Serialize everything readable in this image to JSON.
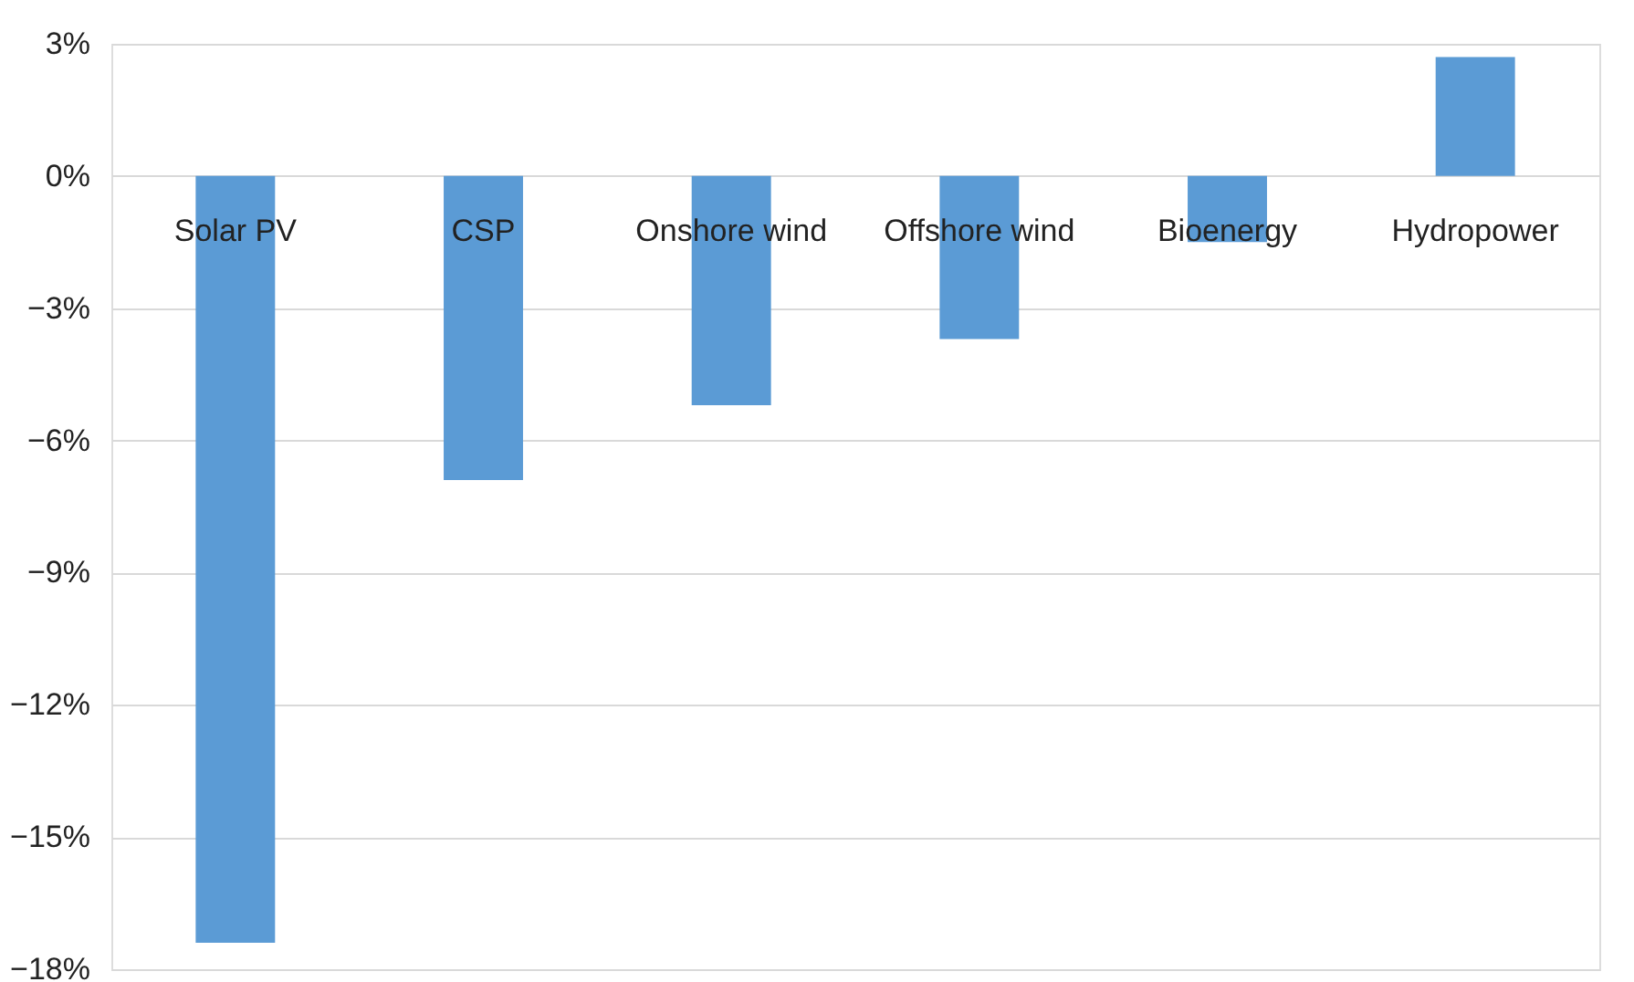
{
  "chart_data": {
    "type": "bar",
    "categories": [
      "Solar PV",
      "CSP",
      "Onshore wind",
      "Offshore wind",
      "Bioenergy",
      "Hydropower"
    ],
    "values": [
      -17.4,
      -6.9,
      -5.2,
      -3.7,
      -1.5,
      2.7
    ],
    "color": "#5b9bd5",
    "ylim": [
      -18,
      3
    ],
    "yticks": [
      {
        "value": -18,
        "label": "−18%"
      },
      {
        "value": -15,
        "label": "−15%"
      },
      {
        "value": -12,
        "label": "−12%"
      },
      {
        "value": -9,
        "label": "−9%"
      },
      {
        "value": -6,
        "label": "−6%"
      },
      {
        "value": -3,
        "label": "−3%"
      },
      {
        "value": 0,
        "label": "0%"
      },
      {
        "value": 3,
        "label": "3%"
      }
    ],
    "grid": "y"
  }
}
